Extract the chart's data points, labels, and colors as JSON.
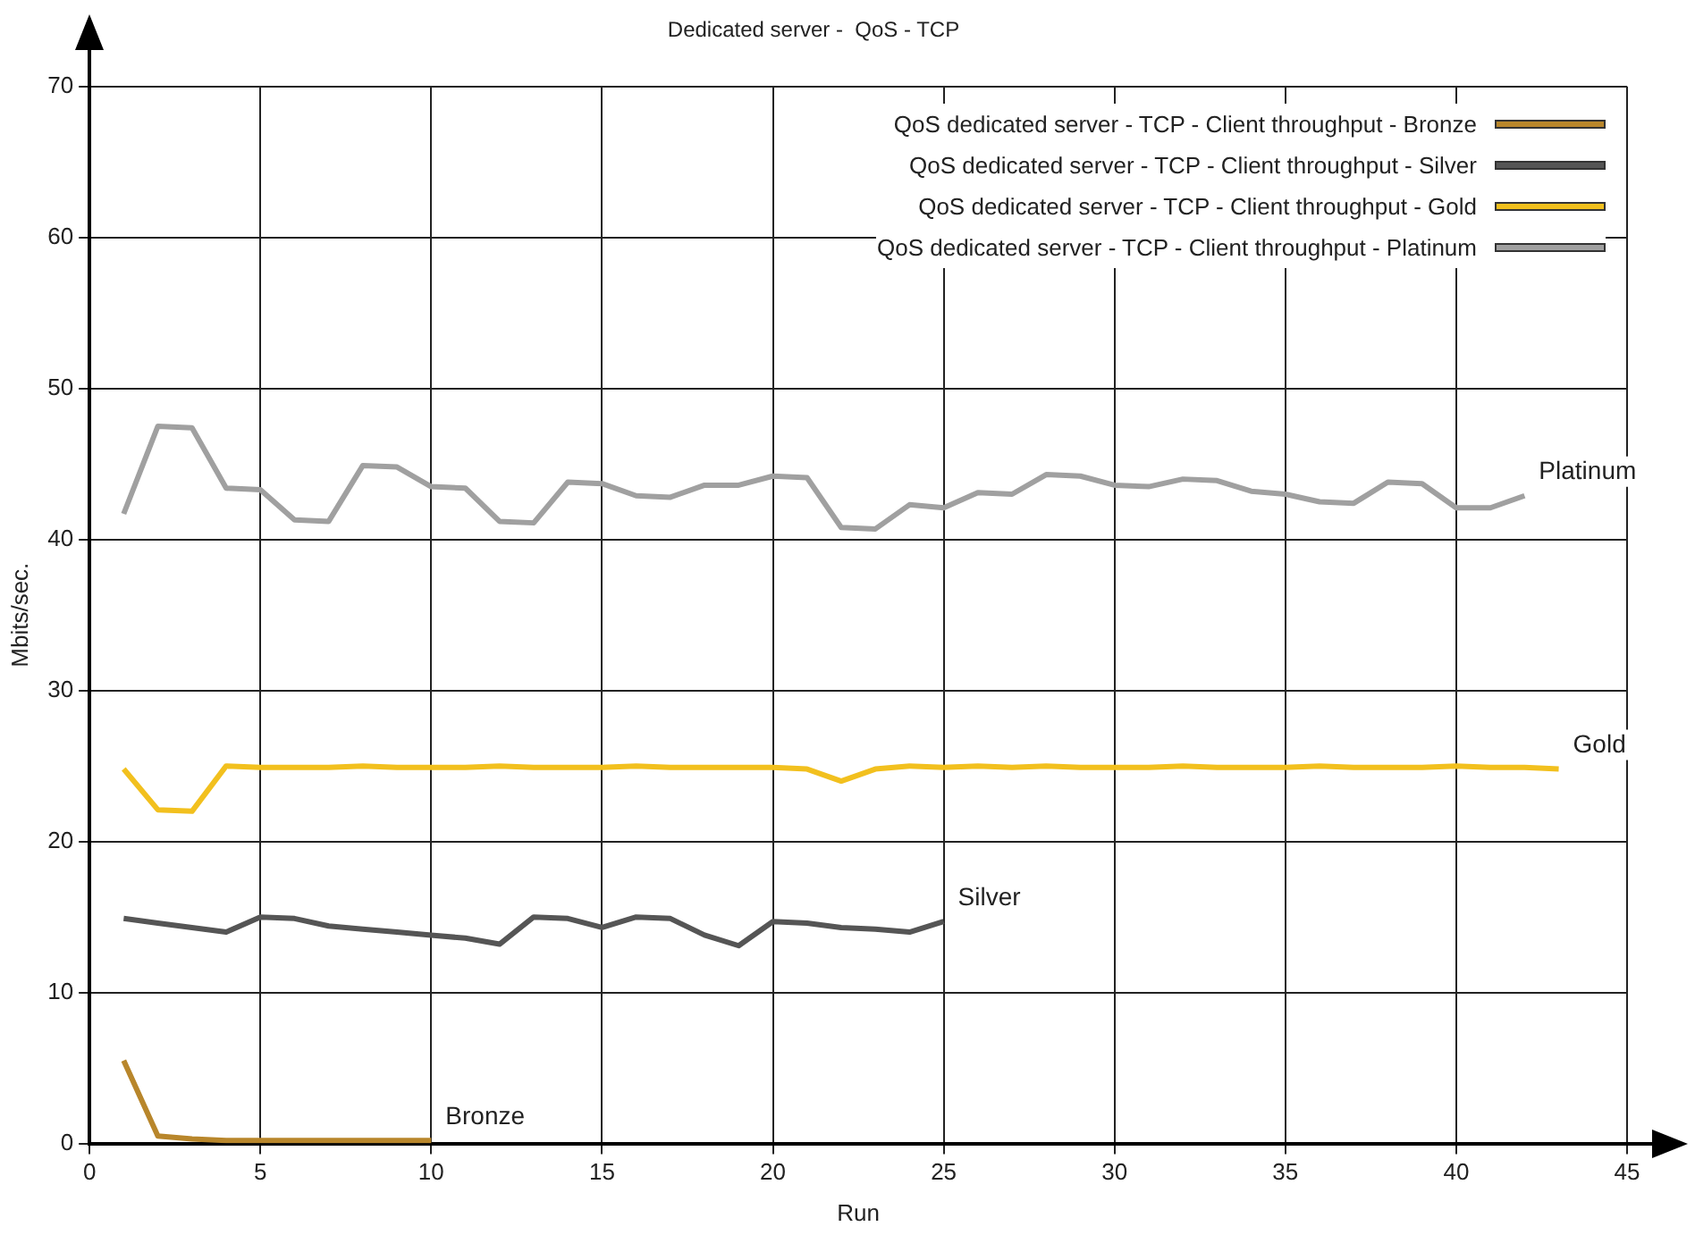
{
  "chart_data": {
    "type": "line",
    "title": "Dedicated server -  QoS - TCP",
    "xlabel": "Run",
    "ylabel": "Mbits/sec.",
    "xlim": [
      0,
      45
    ],
    "xticks": [
      0,
      5,
      10,
      15,
      20,
      25,
      30,
      35,
      40,
      45
    ],
    "ylim": [
      0,
      70
    ],
    "yticks": [
      0,
      10,
      20,
      30,
      40,
      50,
      60,
      70
    ],
    "grid": true,
    "legend": "top right",
    "marker": "none",
    "line_style": "solid",
    "series": [
      {
        "name": "QoS dedicated server - TCP - Client throughput - Bronze",
        "color": "#b8862b",
        "x": [
          1,
          2,
          3,
          4,
          5,
          6,
          7,
          8,
          9,
          10
        ],
        "values": [
          5.5,
          0.5,
          0.3,
          0.2,
          0.2,
          0.2,
          0.2,
          0.2,
          0.2,
          0.2
        ]
      },
      {
        "name": "QoS dedicated server - TCP - Client throughput - Silver",
        "color": "#555555",
        "x": [
          1,
          2,
          3,
          4,
          5,
          6,
          7,
          8,
          9,
          10,
          11,
          12,
          13,
          14,
          15,
          16,
          17,
          18,
          19,
          20,
          21,
          22,
          23,
          24,
          25
        ],
        "values": [
          14.9,
          14.6,
          14.3,
          14.0,
          15.0,
          14.9,
          14.4,
          14.2,
          14.0,
          13.8,
          13.6,
          13.2,
          15.0,
          14.9,
          14.3,
          15.0,
          14.9,
          13.8,
          13.1,
          14.7,
          14.6,
          14.3,
          14.2,
          14.0,
          14.7
        ]
      },
      {
        "name": "QoS dedicated server - TCP - Client throughput - Gold",
        "color": "#f2c01e",
        "x": [
          1,
          2,
          3,
          4,
          5,
          6,
          7,
          8,
          9,
          10,
          11,
          12,
          13,
          14,
          15,
          16,
          17,
          18,
          19,
          20,
          21,
          22,
          23,
          24,
          25,
          26,
          27,
          28,
          29,
          30,
          31,
          32,
          33,
          34,
          35,
          36,
          37,
          38,
          39,
          40,
          41,
          42,
          43
        ],
        "values": [
          24.8,
          22.1,
          22.0,
          25.0,
          24.9,
          24.9,
          24.9,
          25.0,
          24.9,
          24.9,
          24.9,
          25.0,
          24.9,
          24.9,
          24.9,
          25.0,
          24.9,
          24.9,
          24.9,
          24.9,
          24.8,
          24.0,
          24.8,
          25.0,
          24.9,
          25.0,
          24.9,
          25.0,
          24.9,
          24.9,
          24.9,
          25.0,
          24.9,
          24.9,
          24.9,
          25.0,
          24.9,
          24.9,
          24.9,
          25.0,
          24.9,
          24.9,
          24.8
        ]
      },
      {
        "name": "QoS dedicated server - TCP - Client throughput - Platinum",
        "color": "#a0a0a0",
        "x": [
          1,
          2,
          3,
          4,
          5,
          6,
          7,
          8,
          9,
          10,
          11,
          12,
          13,
          14,
          15,
          16,
          17,
          18,
          19,
          20,
          21,
          22,
          23,
          24,
          25,
          26,
          27,
          28,
          29,
          30,
          31,
          32,
          33,
          34,
          35,
          36,
          37,
          38,
          39,
          40,
          41,
          42
        ],
        "values": [
          41.7,
          47.5,
          47.4,
          43.4,
          43.3,
          41.3,
          41.2,
          44.9,
          44.8,
          43.5,
          43.4,
          41.2,
          41.1,
          43.8,
          43.7,
          42.9,
          42.8,
          43.6,
          43.6,
          44.2,
          44.1,
          40.8,
          40.7,
          42.3,
          42.1,
          43.1,
          43.0,
          44.3,
          44.2,
          43.6,
          43.5,
          44.0,
          43.9,
          43.2,
          43.0,
          42.5,
          42.4,
          43.8,
          43.7,
          42.1,
          42.1,
          42.9
        ]
      }
    ],
    "annotations": [
      {
        "text": "Platinum",
        "x": 42,
        "y": 42.9
      },
      {
        "text": "Gold",
        "x": 43,
        "y": 24.8
      },
      {
        "text": "Silver",
        "x": 25,
        "y": 14.7
      },
      {
        "text": "Bronze",
        "x": 10,
        "y": 0.2
      }
    ]
  }
}
